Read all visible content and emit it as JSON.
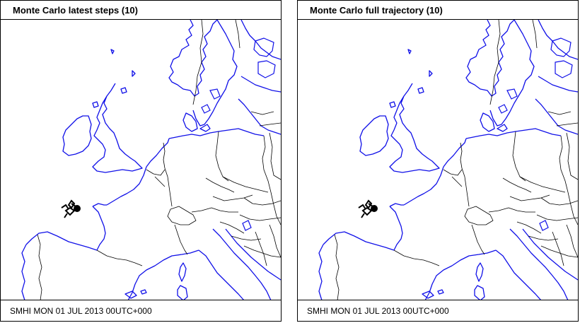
{
  "panels": [
    {
      "title": "Monte Carlo latest steps (10)",
      "footer": "SMHI MON 01 JUL 2013 00UTC+000"
    },
    {
      "title": "Monte Carlo full trajectory (10)",
      "footer": "SMHI MON 01 JUL 2013 00UTC+000"
    }
  ],
  "colors": {
    "coastline": "#1010e8",
    "borders": "#000000",
    "trajectory": "#000000",
    "background": "#ffffff"
  }
}
